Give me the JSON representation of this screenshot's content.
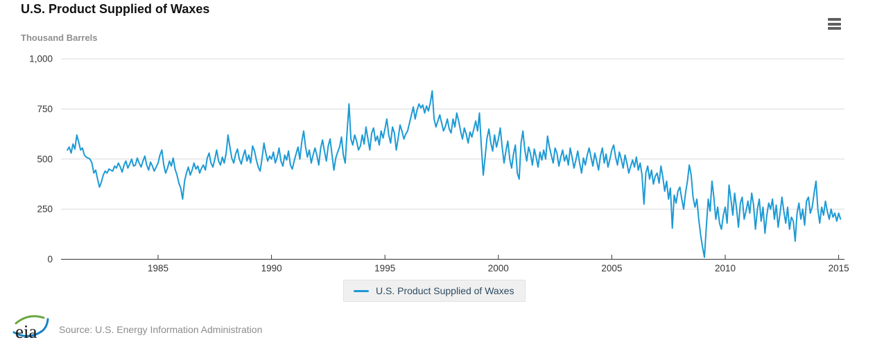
{
  "header": {
    "title": "U.S. Product Supplied of Waxes",
    "units_label": "Thousand Barrels",
    "menu_icon": "hamburger-icon"
  },
  "legend": {
    "label": "U.S. Product Supplied of Waxes",
    "swatch_color": "#1c9ad4"
  },
  "footer": {
    "logo_text": "eia",
    "source": "Source: U.S. Energy Information Administration"
  },
  "colors": {
    "line": "#1c9ad4",
    "gridline": "#d8d8d8",
    "axis": "#333333",
    "tick_label": "#333333"
  },
  "chart_data": {
    "type": "line",
    "title": "U.S. Product Supplied of Waxes",
    "xlabel": "",
    "ylabel": "Thousand Barrels",
    "grid": "horizontal",
    "legend_position": "bottom",
    "xlim": [
      1980.7,
      2015.3
    ],
    "ylim": [
      0,
      1000
    ],
    "xticks": [
      1985,
      1990,
      1995,
      2000,
      2005,
      2010,
      2015
    ],
    "yticks": [
      0,
      250,
      500,
      750,
      1000
    ],
    "ytick_labels": [
      "0",
      "250",
      "500",
      "750",
      "1,000"
    ],
    "series": [
      {
        "name": "U.S. Product Supplied of Waxes",
        "color": "#1c9ad4",
        "frequency": "monthly",
        "start_year": 1981,
        "start_month": 1,
        "values": [
          545,
          560,
          530,
          575,
          550,
          620,
          585,
          545,
          555,
          520,
          510,
          505,
          500,
          480,
          430,
          445,
          400,
          360,
          385,
          420,
          440,
          430,
          450,
          445,
          440,
          465,
          455,
          480,
          460,
          435,
          470,
          490,
          455,
          475,
          500,
          465,
          470,
          505,
          480,
          460,
          490,
          515,
          470,
          445,
          485,
          465,
          440,
          460,
          480,
          520,
          545,
          470,
          430,
          455,
          490,
          465,
          505,
          450,
          420,
          380,
          355,
          300,
          390,
          430,
          460,
          420,
          445,
          480,
          450,
          465,
          430,
          455,
          470,
          445,
          505,
          530,
          480,
          460,
          500,
          545,
          490,
          470,
          510,
          480,
          530,
          620,
          560,
          505,
          480,
          525,
          550,
          500,
          475,
          515,
          545,
          490,
          520,
          480,
          565,
          540,
          495,
          460,
          440,
          505,
          580,
          530,
          490,
          515,
          500,
          535,
          480,
          510,
          555,
          490,
          465,
          520,
          495,
          540,
          470,
          450,
          490,
          525,
          560,
          500,
          585,
          640,
          560,
          510,
          545,
          480,
          520,
          555,
          520,
          470,
          555,
          595,
          540,
          490,
          565,
          600,
          520,
          445,
          505,
          535,
          560,
          610,
          520,
          480,
          640,
          775,
          600,
          570,
          620,
          590,
          545,
          565,
          620,
          575,
          660,
          600,
          545,
          630,
          655,
          590,
          615,
          570,
          640,
          605,
          650,
          700,
          620,
          580,
          660,
          630,
          545,
          605,
          670,
          640,
          600,
          625,
          640,
          680,
          720,
          760,
          700,
          745,
          775,
          755,
          770,
          730,
          765,
          740,
          780,
          840,
          700,
          660,
          690,
          720,
          680,
          640,
          665,
          700,
          650,
          630,
          700,
          660,
          730,
          690,
          640,
          600,
          655,
          625,
          580,
          635,
          610,
          650,
          690,
          640,
          730,
          560,
          420,
          510,
          605,
          650,
          580,
          540,
          620,
          560,
          600,
          655,
          560,
          480,
          540,
          590,
          500,
          455,
          525,
          570,
          430,
          400,
          580,
          640,
          545,
          490,
          560,
          525,
          470,
          550,
          510,
          460,
          535,
          495,
          545,
          500,
          615,
          560,
          520,
          480,
          555,
          530,
          465,
          510,
          545,
          490,
          520,
          470,
          555,
          510,
          455,
          495,
          540,
          480,
          430,
          505,
          470,
          520,
          555,
          510,
          465,
          530,
          490,
          445,
          515,
          555,
          480,
          525,
          460,
          500,
          545,
          570,
          510,
          470,
          535,
          500,
          455,
          520,
          480,
          430,
          465,
          495,
          460,
          510,
          445,
          480,
          420,
          275,
          430,
          465,
          400,
          445,
          375,
          415,
          430,
          380,
          465,
          410,
          340,
          390,
          300,
          355,
          155,
          320,
          280,
          340,
          360,
          300,
          250,
          330,
          390,
          470,
          420,
          310,
          260,
          300,
          200,
          120,
          60,
          10,
          160,
          300,
          240,
          390,
          310,
          200,
          260,
          180,
          150,
          220,
          260,
          180,
          370,
          300,
          220,
          330,
          250,
          160,
          280,
          310,
          200,
          240,
          290,
          230,
          330,
          270,
          150,
          250,
          300,
          190,
          260,
          130,
          220,
          280,
          250,
          300,
          200,
          270,
          160,
          230,
          310,
          240,
          180,
          260,
          150,
          210,
          190,
          90,
          230,
          280,
          200,
          250,
          170,
          290,
          310,
          230,
          260,
          330,
          390,
          250,
          180,
          260,
          220,
          290,
          240,
          200,
          250,
          210,
          230,
          190,
          230,
          200
        ]
      }
    ]
  }
}
